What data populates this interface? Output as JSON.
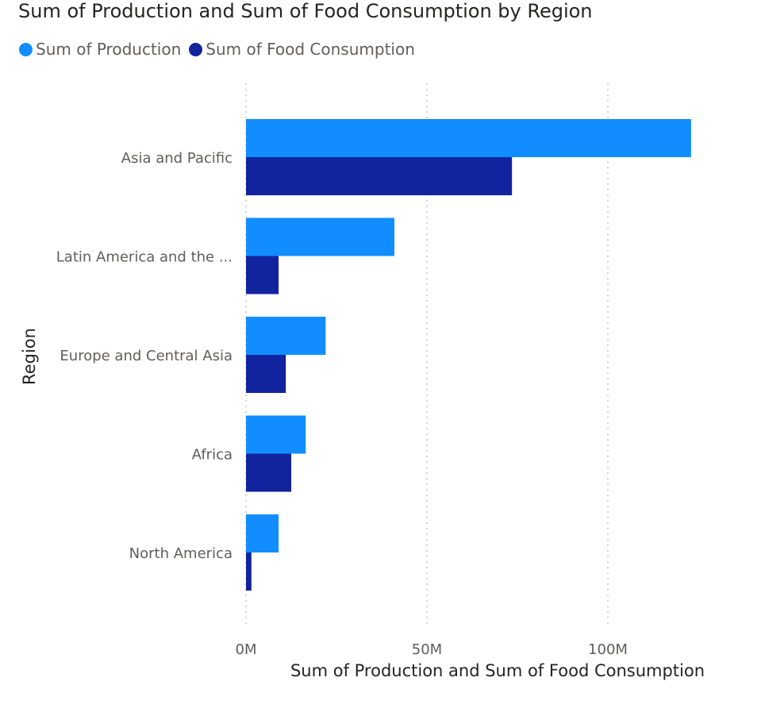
{
  "chart_data": {
    "type": "bar",
    "orientation": "horizontal",
    "title": "Sum of Production and Sum of Food Consumption by Region",
    "xlabel": "Sum of Production and Sum of Food Consumption",
    "ylabel": "Region",
    "categories": [
      "Asia and Pacific",
      "Latin America and the ...",
      "Europe and Central Asia",
      "Africa",
      "North America"
    ],
    "series": [
      {
        "name": "Sum of Production",
        "color": "#118dff",
        "values": [
          123000000,
          41000000,
          22000000,
          16500000,
          9000000
        ]
      },
      {
        "name": "Sum of Food Consumption",
        "color": "#12239e",
        "values": [
          73500000,
          9000000,
          11000000,
          12500000,
          1500000
        ]
      }
    ],
    "x_ticks": [
      0,
      50000000,
      100000000
    ],
    "x_tick_labels": [
      "0M",
      "50M",
      "100M"
    ],
    "xlim": [
      0,
      123000000
    ],
    "grid": true,
    "legend_position": "top-left"
  }
}
